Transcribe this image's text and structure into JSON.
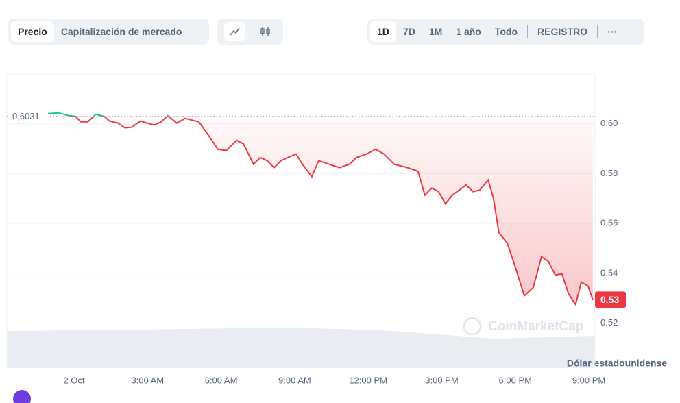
{
  "ui": {
    "view_tabs": [
      "Precio",
      "Capitalización de mercado"
    ],
    "ranges": [
      "1D",
      "7D",
      "1M",
      "1 año",
      "Todo",
      "REGISTRO"
    ],
    "more": "···"
  },
  "chart_data": {
    "type": "line",
    "x": [
      -1.06,
      -0.64,
      -0.22,
      0.06,
      0.28,
      0.56,
      0.89,
      1.23,
      1.45,
      1.79,
      2.07,
      2.35,
      2.71,
      2.99,
      3.27,
      3.55,
      3.83,
      4.19,
      4.53,
      5.09,
      5.37,
      5.87,
      6.21,
      6.63,
      6.91,
      7.32,
      7.6,
      7.88,
      8.16,
      8.44,
      8.72,
      9.06,
      9.28,
      9.7,
      9.98,
      10.4,
      10.82,
      11.24,
      11.52,
      11.94,
      12.3,
      12.64,
      13.06,
      13.61,
      14.03,
      14.31,
      14.59,
      14.87,
      15.15,
      15.43,
      15.71,
      15.99,
      16.27,
      16.55,
      16.89,
      17.11,
      17.33,
      17.67,
      17.95,
      18.37,
      18.73,
      19.07,
      19.35,
      19.63,
      19.9,
      20.18,
      20.46,
      20.69,
      20.97,
      21.16
    ],
    "values": [
      0.6041,
      0.6044,
      0.6033,
      0.603,
      0.6008,
      0.6008,
      0.6038,
      0.603,
      0.6011,
      0.6003,
      0.5984,
      0.5986,
      0.6011,
      0.6003,
      0.5995,
      0.6008,
      0.6033,
      0.6003,
      0.6022,
      0.6008,
      0.597,
      0.5898,
      0.5893,
      0.5934,
      0.592,
      0.5838,
      0.5865,
      0.5852,
      0.5824,
      0.5852,
      0.5865,
      0.5879,
      0.5843,
      0.5788,
      0.5852,
      0.5838,
      0.5824,
      0.5838,
      0.5865,
      0.5879,
      0.5898,
      0.5879,
      0.5838,
      0.5824,
      0.581,
      0.5714,
      0.5742,
      0.5728,
      0.5679,
      0.5714,
      0.5734,
      0.5755,
      0.5728,
      0.5734,
      0.5775,
      0.5701,
      0.5563,
      0.5522,
      0.544,
      0.531,
      0.5343,
      0.5467,
      0.5448,
      0.5393,
      0.5398,
      0.5316,
      0.5275,
      0.5365,
      0.5349,
      0.5294
    ],
    "up_color": "#16c784",
    "down_color": "#ea3943",
    "reference": {
      "value": 0.6031,
      "label": "0,6031"
    },
    "current_price": {
      "value": 0.5294,
      "label": "0.53"
    },
    "xlim": [
      -2.74,
      21.25
    ],
    "xticks": [
      {
        "value": 0,
        "label": "2 Oct"
      },
      {
        "value": 3,
        "label": "3:00 AM"
      },
      {
        "value": 6,
        "label": "6:00 AM"
      },
      {
        "value": 9,
        "label": "9:00 AM"
      },
      {
        "value": 12,
        "label": "12:00 PM"
      },
      {
        "value": 15,
        "label": "3:00 PM"
      },
      {
        "value": 18,
        "label": "6:00 PM"
      },
      {
        "value": 21,
        "label": "9:00 PM"
      }
    ],
    "ylim": [
      0.502,
      0.62
    ],
    "yticks": [
      0.52,
      0.54,
      0.56,
      0.58,
      {
        "value": 0.6,
        "label": "0.60"
      }
    ],
    "grid": true,
    "watermark": "CoinMarketCap",
    "currency_label": "Dólar estadounidense"
  }
}
